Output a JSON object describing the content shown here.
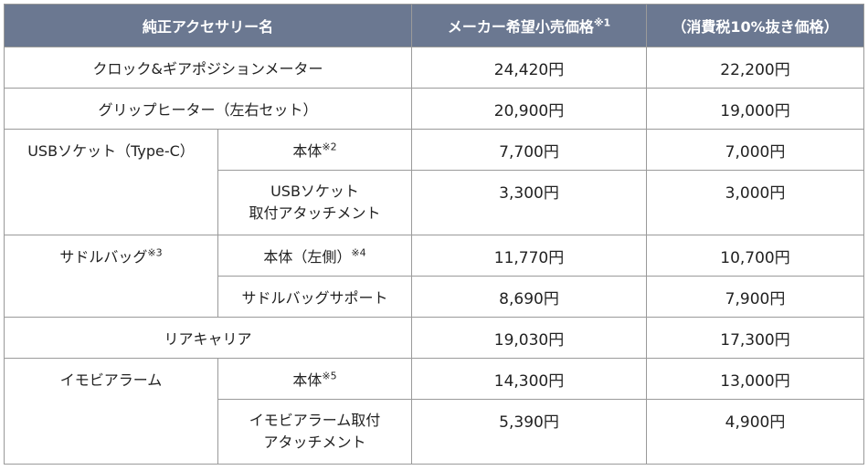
{
  "header": {
    "col_name": "純正アクセサリー名",
    "col_price": "メーカー希望小売価格",
    "col_price_note": "※1",
    "col_tax": "（消費税10%抜き価格）"
  },
  "rows": {
    "clock": {
      "name": "クロック&ギアポジションメーター",
      "price": "24,420円",
      "tax": "22,200円"
    },
    "grip": {
      "name": "グリップヒーター（左右セット）",
      "price": "20,900円",
      "tax": "19,000円"
    },
    "usb": {
      "group": "USBソケット（Type-C）",
      "body": {
        "name": "本体",
        "note": "※2",
        "price": "7,700円",
        "tax": "7,000円"
      },
      "attach": {
        "name_l1": "USBソケット",
        "name_l2": "取付アタッチメント",
        "price": "3,300円",
        "tax": "3,000円"
      }
    },
    "saddle": {
      "group": "サドルバッグ",
      "group_note": "※3",
      "body": {
        "name": "本体（左側）",
        "note": "※4",
        "price": "11,770円",
        "tax": "10,700円"
      },
      "support": {
        "name": "サドルバッグサポート",
        "price": "8,690円",
        "tax": "7,900円"
      }
    },
    "carrier": {
      "name": "リアキャリア",
      "price": "19,030円",
      "tax": "17,300円"
    },
    "immo": {
      "group": "イモビアラーム",
      "body": {
        "name": "本体",
        "note": "※5",
        "price": "14,300円",
        "tax": "13,000円"
      },
      "attach": {
        "name_l1": "イモビアラーム取付",
        "name_l2": "アタッチメント",
        "price": "5,390円",
        "tax": "4,900円"
      }
    }
  }
}
